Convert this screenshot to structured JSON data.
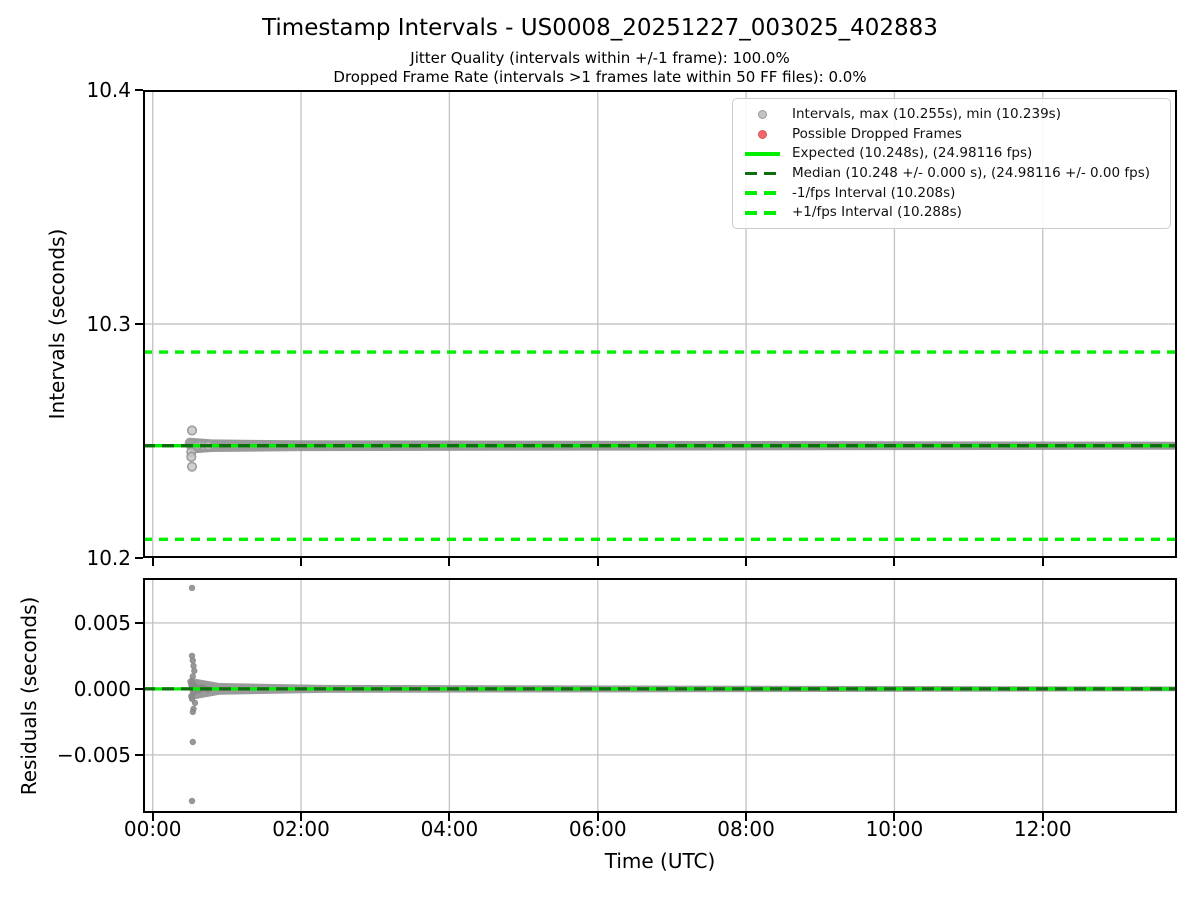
{
  "colors": {
    "lime": "#00ee00",
    "darkgreen": "#0d6e0d",
    "scatter_fill": "#c3c3c3",
    "scatter_edge": "#9a9a9a",
    "scatter_small": "#8a8a8a",
    "band": "#8f8f8f",
    "grid": "#c6c6c6",
    "spine": "#000000",
    "dropped": "#f26868",
    "legend_border": "#cccccc"
  },
  "chart_data": [
    {
      "id": "intervals",
      "type": "scatter",
      "title": "Timestamp Intervals - US0008_20251227_003025_402883",
      "subtitle1": "Jitter Quality (intervals within +/-1 frame): 100.0%",
      "subtitle2": "Dropped Frame Rate (intervals >1 frames late within 50 FF files): 0.0%",
      "ylabel": "Intervals (seconds)",
      "ylim": [
        10.2,
        10.4
      ],
      "yticks": [
        {
          "v": 10.4,
          "label": "10.4"
        },
        {
          "v": 10.3,
          "label": "10.3"
        },
        {
          "v": 10.2,
          "label": "10.2"
        }
      ],
      "xlim_hours": [
        -0.131,
        13.81
      ],
      "xticks": [
        {
          "h": 0,
          "label": "00:00"
        },
        {
          "h": 2,
          "label": "02:00"
        },
        {
          "h": 4,
          "label": "04:00"
        },
        {
          "h": 6,
          "label": "06:00"
        },
        {
          "h": 8,
          "label": "08:00"
        },
        {
          "h": 10,
          "label": "10:00"
        },
        {
          "h": 12,
          "label": "12:00"
        }
      ],
      "grid": true,
      "stats": {
        "max_interval_s": 10.255,
        "min_interval_s": 10.239,
        "expected_interval_s": 10.248,
        "expected_fps": 24.98116,
        "median_interval_s": 10.248,
        "median_interval_err_s": 0.0,
        "median_fps": 24.98116,
        "median_fps_err": 0.0,
        "minus_1fps_interval_s": 10.208,
        "plus_1fps_interval_s": 10.288,
        "jitter_quality_pct": 100.0,
        "dropped_frame_rate_pct": 0.0,
        "dropped_window_ff_files": 50
      },
      "lines": [
        {
          "name": "plus-1fps-line",
          "v": 10.288,
          "color": "lime",
          "dash": [
            9,
            7
          ],
          "width": 3.4
        },
        {
          "name": "minus-1fps-line",
          "v": 10.208,
          "color": "lime",
          "dash": [
            9,
            7
          ],
          "width": 3.4
        },
        {
          "name": "expected-line",
          "v": 10.248,
          "color": "lime",
          "dash": null,
          "width": 3.4
        },
        {
          "name": "median-line",
          "v": 10.248,
          "color": "darkgreen",
          "dash": [
            12,
            7
          ],
          "width": 3.4
        }
      ],
      "density_band": {
        "v": 10.248,
        "knots": [
          {
            "t": 0.5,
            "half_s": 0.0034
          },
          {
            "t": 0.8,
            "half_s": 0.0027
          },
          {
            "t": 2.0,
            "half_s": 0.0023
          },
          {
            "t": 13.81,
            "half_s": 0.0017
          }
        ]
      },
      "points": [
        {
          "t": 0.53,
          "v": 10.2545
        },
        {
          "t": 0.5,
          "v": 10.2492
        },
        {
          "t": 0.51,
          "v": 10.2483
        },
        {
          "t": 0.52,
          "v": 10.2489
        },
        {
          "t": 0.53,
          "v": 10.2479
        },
        {
          "t": 0.54,
          "v": 10.2485
        },
        {
          "t": 0.55,
          "v": 10.2477
        },
        {
          "t": 0.57,
          "v": 10.2481
        },
        {
          "t": 0.59,
          "v": 10.2479
        },
        {
          "t": 0.62,
          "v": 10.248
        },
        {
          "t": 0.66,
          "v": 10.2481
        },
        {
          "t": 0.7,
          "v": 10.2479
        },
        {
          "t": 0.75,
          "v": 10.248
        },
        {
          "t": 0.52,
          "v": 10.2453
        },
        {
          "t": 0.52,
          "v": 10.2432
        },
        {
          "t": 0.53,
          "v": 10.239
        }
      ],
      "dropped_frames_points": [],
      "legend": {
        "position": "top-right",
        "entries": [
          {
            "name": "intervals",
            "marker": "dot-gray",
            "label": "Intervals, max (10.255s), min (10.239s)"
          },
          {
            "name": "dropped-frames",
            "marker": "dot-red",
            "label": "Possible Dropped Frames"
          },
          {
            "name": "expected",
            "marker": "line-solid-lime",
            "label": "Expected (10.248s), (24.98116 fps)"
          },
          {
            "name": "median",
            "marker": "line-dashed-darkgreen",
            "label": "Median (10.248 +/- 0.000 s), (24.98116 +/- 0.00 fps)"
          },
          {
            "name": "minus-1fps",
            "marker": "line-dashed-lime",
            "label": "-1/fps Interval (10.208s)"
          },
          {
            "name": "plus-1fps",
            "marker": "line-dashed-lime",
            "label": "+1/fps Interval (10.288s)"
          }
        ]
      }
    },
    {
      "id": "residuals",
      "type": "scatter",
      "ylabel": "Residuals (seconds)",
      "xlabel": "Time (UTC)",
      "ylim": [
        -0.0094,
        0.0084
      ],
      "yticks": [
        {
          "v": 0.005,
          "label": "0.005"
        },
        {
          "v": 0.0,
          "label": "0.000"
        },
        {
          "v": -0.005,
          "label": "−0.005"
        }
      ],
      "grid": true,
      "lines": [
        {
          "name": "residual-expected-line",
          "v": 0,
          "color": "lime",
          "dash": null,
          "width": 3.2
        },
        {
          "name": "residual-median-line",
          "v": 0,
          "color": "darkgreen",
          "dash": [
            12,
            7
          ],
          "width": 3.2
        }
      ],
      "density_band": {
        "v": 0.0,
        "knots": [
          {
            "t": 0.5,
            "half_s": 0.00085
          },
          {
            "t": 0.9,
            "half_s": 0.00045
          },
          {
            "t": 2.3,
            "half_s": 0.0003
          },
          {
            "t": 13.81,
            "half_s": 0.00018
          }
        ]
      },
      "points": [
        {
          "t": 0.53,
          "v": 0.00765
        },
        {
          "t": 0.53,
          "v": 0.0025
        },
        {
          "t": 0.54,
          "v": 0.00215
        },
        {
          "t": 0.55,
          "v": 0.00174
        },
        {
          "t": 0.56,
          "v": 0.00136
        },
        {
          "t": 0.54,
          "v": 0.00095
        },
        {
          "t": 0.51,
          "v": 0.00055
        },
        {
          "t": 0.52,
          "v": 0.0003
        },
        {
          "t": 0.53,
          "v": 0.0001
        },
        {
          "t": 0.54,
          "v": 0.00045
        },
        {
          "t": 0.55,
          "v": 5e-05
        },
        {
          "t": 0.56,
          "v": -0.00025
        },
        {
          "t": 0.58,
          "v": 0.00015
        },
        {
          "t": 0.6,
          "v": 5e-05
        },
        {
          "t": 0.63,
          "v": -0.0001
        },
        {
          "t": 0.66,
          "v": 0.0001
        },
        {
          "t": 0.7,
          "v": 5e-05
        },
        {
          "t": 0.75,
          "v": -5e-05
        },
        {
          "t": 0.52,
          "v": -0.00055
        },
        {
          "t": 0.53,
          "v": -0.00075
        },
        {
          "t": 0.57,
          "v": -0.00106
        },
        {
          "t": 0.55,
          "v": -0.00152
        },
        {
          "t": 0.54,
          "v": -0.00174
        },
        {
          "t": 0.54,
          "v": -0.00402
        },
        {
          "t": 0.53,
          "v": -0.00849
        }
      ]
    }
  ]
}
